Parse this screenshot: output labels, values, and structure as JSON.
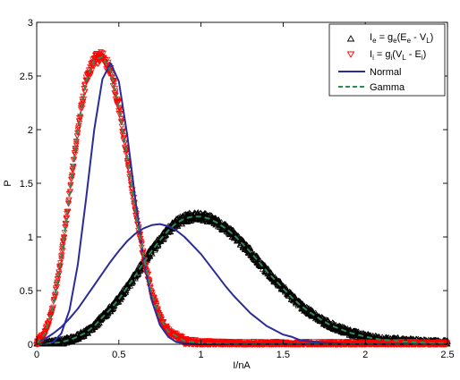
{
  "chart_data": {
    "type": "scatter",
    "title": "",
    "xlabel": "I/nA",
    "ylabel": "P",
    "xlim": [
      0,
      2.5
    ],
    "ylim": [
      0,
      3
    ],
    "x_ticks": [
      "0",
      "0.5",
      "1",
      "1.5",
      "2",
      "2.5"
    ],
    "y_ticks": [
      "0",
      "0.5",
      "1",
      "1.5",
      "2",
      "2.5",
      "3"
    ],
    "grid": false,
    "legend_position": "top-right",
    "legend": {
      "excitatory": {
        "parts": [
          "I",
          "e",
          " = g",
          "e",
          "(E",
          "e",
          " - V",
          "L",
          ")"
        ]
      },
      "inhibitory": {
        "parts": [
          "I",
          "i",
          " = g",
          "i",
          "(V",
          "L",
          " - E",
          "i",
          ")"
        ]
      },
      "normal": {
        "label": "Normal"
      },
      "gamma": {
        "label": "Gamma"
      }
    },
    "series": [
      {
        "name": "I_e = g_e(E_e - V_L)",
        "kind": "markers",
        "marker": "triangle-up",
        "color": "#000000",
        "x": [
          0.0,
          0.05,
          0.1,
          0.15,
          0.2,
          0.25,
          0.3,
          0.35,
          0.4,
          0.45,
          0.5,
          0.55,
          0.6,
          0.65,
          0.7,
          0.75,
          0.8,
          0.85,
          0.9,
          0.95,
          1.0,
          1.05,
          1.1,
          1.15,
          1.2,
          1.25,
          1.3,
          1.35,
          1.4,
          1.45,
          1.5,
          1.55,
          1.6,
          1.65,
          1.7,
          1.75,
          1.8,
          1.85,
          1.9,
          2.0,
          2.1,
          2.2,
          2.3,
          2.4,
          2.5
        ],
        "y": [
          0.0,
          0.0,
          0.01,
          0.02,
          0.04,
          0.07,
          0.11,
          0.17,
          0.25,
          0.33,
          0.42,
          0.53,
          0.64,
          0.76,
          0.87,
          0.97,
          1.06,
          1.13,
          1.17,
          1.19,
          1.19,
          1.17,
          1.13,
          1.08,
          1.02,
          0.94,
          0.86,
          0.77,
          0.68,
          0.6,
          0.52,
          0.44,
          0.37,
          0.31,
          0.26,
          0.21,
          0.17,
          0.14,
          0.11,
          0.07,
          0.04,
          0.03,
          0.02,
          0.01,
          0.01
        ]
      },
      {
        "name": "I_i = g_i(V_L - E_i)",
        "kind": "markers",
        "marker": "triangle-down",
        "color": "#ff0000",
        "x": [
          0.0,
          0.05,
          0.1,
          0.15,
          0.2,
          0.25,
          0.3,
          0.35,
          0.4,
          0.45,
          0.5,
          0.55,
          0.6,
          0.65,
          0.7,
          0.75,
          0.8,
          0.9,
          1.0,
          1.2,
          1.5,
          2.0,
          2.5
        ],
        "y": [
          0.01,
          0.1,
          0.35,
          0.8,
          1.4,
          2.0,
          2.45,
          2.65,
          2.68,
          2.55,
          2.2,
          1.75,
          1.25,
          0.82,
          0.48,
          0.25,
          0.12,
          0.03,
          0.01,
          0.0,
          0.0,
          0.0,
          0.0
        ]
      },
      {
        "name": "Normal",
        "kind": "line",
        "style": "solid",
        "color": "#2b2b9a",
        "x": [
          0.0,
          0.05,
          0.1,
          0.15,
          0.2,
          0.25,
          0.3,
          0.35,
          0.4,
          0.45,
          0.5,
          0.55,
          0.6,
          0.65,
          0.7,
          0.75,
          0.8,
          0.85,
          0.9,
          0.95,
          1.0,
          1.05,
          1.1,
          1.15,
          1.2,
          1.25,
          1.3,
          1.35,
          1.4,
          1.45,
          1.5,
          1.55,
          1.6,
          1.65,
          1.7,
          1.75,
          1.8,
          1.9,
          2.0,
          2.1,
          2.2,
          2.3,
          2.4,
          2.5
        ],
        "y": [
          0.02,
          0.05,
          0.1,
          0.16,
          0.24,
          0.33,
          0.44,
          0.55,
          0.66,
          0.77,
          0.87,
          0.96,
          1.03,
          1.08,
          1.11,
          1.12,
          1.1,
          1.06,
          1.0,
          0.92,
          0.84,
          0.74,
          0.64,
          0.54,
          0.45,
          0.37,
          0.29,
          0.23,
          0.17,
          0.13,
          0.09,
          0.07,
          0.04,
          0.03,
          0.02,
          0.01,
          0.01,
          0.0,
          0.0,
          0.0,
          0.0,
          0.0,
          0.0,
          0.0
        ]
      },
      {
        "name": "Normal",
        "kind": "line",
        "style": "solid",
        "color": "#2b2b9a",
        "x": [
          0.0,
          0.05,
          0.1,
          0.15,
          0.2,
          0.25,
          0.3,
          0.35,
          0.4,
          0.45,
          0.5,
          0.55,
          0.6,
          0.65,
          0.7,
          0.75,
          0.8,
          0.85,
          0.9,
          1.0,
          1.2,
          1.5,
          2.0,
          2.5
        ],
        "y": [
          0.0,
          0.0,
          0.02,
          0.1,
          0.32,
          0.74,
          1.35,
          2.0,
          2.47,
          2.62,
          2.45,
          1.96,
          1.35,
          0.8,
          0.41,
          0.18,
          0.07,
          0.02,
          0.01,
          0.0,
          0.0,
          0.0,
          0.0,
          0.0
        ]
      },
      {
        "name": "Gamma",
        "kind": "line",
        "style": "dashed",
        "color": "#2e8b57",
        "x": [
          0.0,
          0.05,
          0.1,
          0.15,
          0.2,
          0.25,
          0.3,
          0.35,
          0.4,
          0.45,
          0.5,
          0.55,
          0.6,
          0.65,
          0.7,
          0.75,
          0.8,
          0.85,
          0.9,
          0.95,
          1.0,
          1.05,
          1.1,
          1.15,
          1.2,
          1.25,
          1.3,
          1.35,
          1.4,
          1.45,
          1.5,
          1.55,
          1.6,
          1.65,
          1.7,
          1.75,
          1.8,
          1.85,
          1.9,
          2.0,
          2.1,
          2.2,
          2.3,
          2.4,
          2.5
        ],
        "y": [
          0.0,
          0.0,
          0.01,
          0.02,
          0.04,
          0.07,
          0.11,
          0.17,
          0.25,
          0.33,
          0.42,
          0.53,
          0.64,
          0.76,
          0.87,
          0.97,
          1.06,
          1.13,
          1.17,
          1.19,
          1.19,
          1.17,
          1.13,
          1.08,
          1.02,
          0.94,
          0.86,
          0.77,
          0.68,
          0.6,
          0.52,
          0.44,
          0.37,
          0.31,
          0.26,
          0.21,
          0.17,
          0.14,
          0.11,
          0.07,
          0.04,
          0.03,
          0.02,
          0.01,
          0.01
        ]
      },
      {
        "name": "Gamma",
        "kind": "line",
        "style": "dashed",
        "color": "#2e8b57",
        "x": [
          0.0,
          0.05,
          0.1,
          0.15,
          0.2,
          0.25,
          0.3,
          0.35,
          0.4,
          0.45,
          0.5,
          0.55,
          0.6,
          0.65,
          0.7,
          0.75,
          0.8,
          0.9,
          1.0,
          1.2,
          1.5,
          2.0,
          2.5
        ],
        "y": [
          0.01,
          0.1,
          0.35,
          0.8,
          1.4,
          2.0,
          2.45,
          2.65,
          2.68,
          2.55,
          2.2,
          1.75,
          1.25,
          0.82,
          0.48,
          0.25,
          0.12,
          0.03,
          0.01,
          0.0,
          0.0,
          0.0,
          0.0
        ]
      }
    ]
  }
}
